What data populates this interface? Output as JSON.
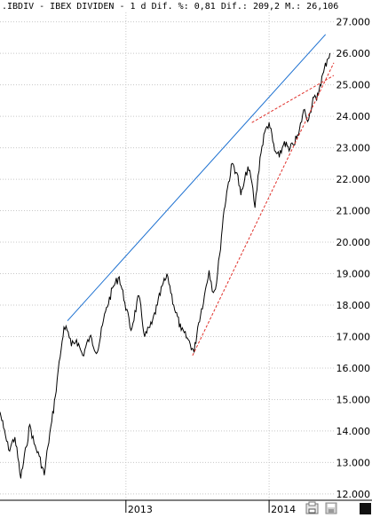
{
  "header": {
    "text": ".IBDIV - IBEX DIVIDEN - 1 d Dif. %: 0,81 Dif.: 209,2 M.: 26,106"
  },
  "colors": {
    "price": "#000000",
    "resistance": "#1a6fd0",
    "trendline": "#e0302a",
    "grid": "#c8c8c8",
    "background": "#ffffff"
  },
  "icons": [
    "printer-icon",
    "disk-icon",
    "stop-icon"
  ],
  "chart_data": {
    "type": "line",
    "title": "",
    "xlabel": "",
    "ylabel": "",
    "ylim": [
      11.8,
      27.3
    ],
    "xlim": [
      "2012-02-15",
      "2014-06-15"
    ],
    "y_ticks": [
      12,
      13,
      14,
      15,
      16,
      17,
      18,
      19,
      20,
      21,
      22,
      23,
      24,
      25,
      26,
      27
    ],
    "y_tick_labels": [
      "12.000",
      "13.000",
      "14.000",
      "15.000",
      "16.000",
      "17.000",
      "18.000",
      "19.000",
      "20.000",
      "21.000",
      "22.000",
      "23.000",
      "24.000",
      "25.000",
      "26.000",
      "27.000"
    ],
    "x_ticks": [
      "2013-01-01",
      "2014-01-01"
    ],
    "x_tick_labels": [
      "2013",
      "2014"
    ],
    "grid": true,
    "series": [
      {
        "x": [
          "2012-02-15",
          "2012-02-24",
          "2012-03-08",
          "2012-03-24",
          "2012-04-08",
          "2012-04-22",
          "2012-05-01",
          "2012-05-12",
          "2012-05-25",
          "2012-06-07",
          "2012-06-16",
          "2012-06-26",
          "2012-07-05",
          "2012-07-12",
          "2012-07-20",
          "2012-07-27",
          "2012-08-04",
          "2012-08-15",
          "2012-08-28",
          "2012-09-13",
          "2012-10-01",
          "2012-10-20",
          "2012-11-10",
          "2012-11-30",
          "2012-12-15",
          "2012-12-29",
          "2013-01-14",
          "2013-02-03",
          "2013-02-18",
          "2013-03-08",
          "2013-03-22",
          "2013-04-06",
          "2013-04-18",
          "2013-05-03",
          "2013-05-22",
          "2013-06-09",
          "2013-06-24",
          "2013-07-03",
          "2013-07-20",
          "2013-08-01",
          "2013-08-12",
          "2013-08-20",
          "2013-08-28",
          "2013-09-06",
          "2013-09-15",
          "2013-09-29",
          "2013-10-11",
          "2013-10-21",
          "2013-10-28",
          "2013-11-08",
          "2013-11-18",
          "2013-11-26",
          "2013-12-09",
          "2013-12-21",
          "2014-01-01",
          "2014-01-15",
          "2014-01-27",
          "2014-02-09",
          "2014-02-21",
          "2014-03-03",
          "2014-03-17",
          "2014-03-30",
          "2014-04-12",
          "2014-04-23",
          "2014-05-02",
          "2014-05-11",
          "2014-05-20",
          "2014-05-29",
          "2014-06-05"
        ],
        "values": [
          14.6,
          14.1,
          13.4,
          13.8,
          12.5,
          13.5,
          14.2,
          13.6,
          13.2,
          12.6,
          13.5,
          14.3,
          15.1,
          15.9,
          16.6,
          17.3,
          17.2,
          16.7,
          16.9,
          16.4,
          17.0,
          16.5,
          17.8,
          18.6,
          18.9,
          18.1,
          17.2,
          18.3,
          17.0,
          17.4,
          18.0,
          18.7,
          18.9,
          18.0,
          17.2,
          16.9,
          16.5,
          17.3,
          18.3,
          19.1,
          18.4,
          18.7,
          19.6,
          20.8,
          21.6,
          22.5,
          22.2,
          21.5,
          21.8,
          22.4,
          21.9,
          21.1,
          22.7,
          23.5,
          23.8,
          22.9,
          22.7,
          23.2,
          22.9,
          23.1,
          23.4,
          24.2,
          23.9,
          24.6,
          24.5,
          25.0,
          25.4,
          25.8,
          26.0
        ]
      }
    ],
    "trendlines": [
      {
        "name": "resistance",
        "x": [
          "2012-08-05",
          "2014-05-25"
        ],
        "y": [
          17.5,
          26.6
        ]
      },
      {
        "name": "support",
        "x": [
          "2013-06-20",
          "2014-06-15"
        ],
        "y": [
          16.4,
          25.7
        ]
      },
      {
        "name": "upper-break",
        "x": [
          "2013-11-18",
          "2014-06-15"
        ],
        "y": [
          23.8,
          25.3
        ]
      }
    ]
  }
}
